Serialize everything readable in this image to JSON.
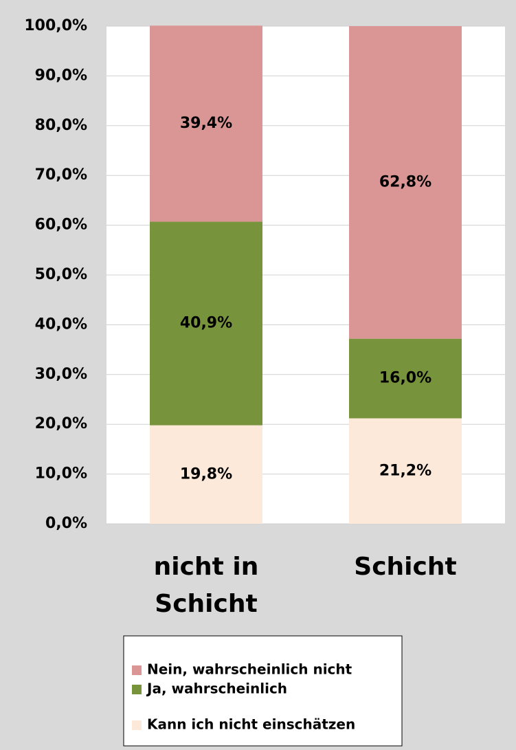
{
  "chart_data": {
    "type": "stacked_bar",
    "categories": [
      "nicht in Schicht",
      "Schicht"
    ],
    "series": [
      {
        "name": "Kann ich nicht einschätzen",
        "color": "#fde9d9",
        "values": [
          19.8,
          21.2
        ],
        "value_labels": [
          "19,8%",
          "21,2%"
        ]
      },
      {
        "name": "Ja, wahrscheinlich",
        "color": "#77933c",
        "values": [
          40.9,
          16.0
        ],
        "value_labels": [
          "40,9%",
          "16,0%"
        ]
      },
      {
        "name": "Nein, wahrscheinlich nicht",
        "color": "#d99694",
        "values": [
          39.4,
          62.8
        ],
        "value_labels": [
          "39,4%",
          "62,8%"
        ]
      }
    ],
    "ylim": [
      0,
      100
    ],
    "yticks": [
      {
        "value": 0,
        "label": "0,0%"
      },
      {
        "value": 10,
        "label": "10,0%"
      },
      {
        "value": 20,
        "label": "20,0%"
      },
      {
        "value": 30,
        "label": "30,0%"
      },
      {
        "value": 40,
        "label": "40,0%"
      },
      {
        "value": 50,
        "label": "50,0%"
      },
      {
        "value": 60,
        "label": "60,0%"
      },
      {
        "value": 70,
        "label": "70,0%"
      },
      {
        "value": 80,
        "label": "80,0%"
      },
      {
        "value": 90,
        "label": "90,0%"
      },
      {
        "value": 100,
        "label": "100,0%"
      }
    ],
    "grid": true
  }
}
